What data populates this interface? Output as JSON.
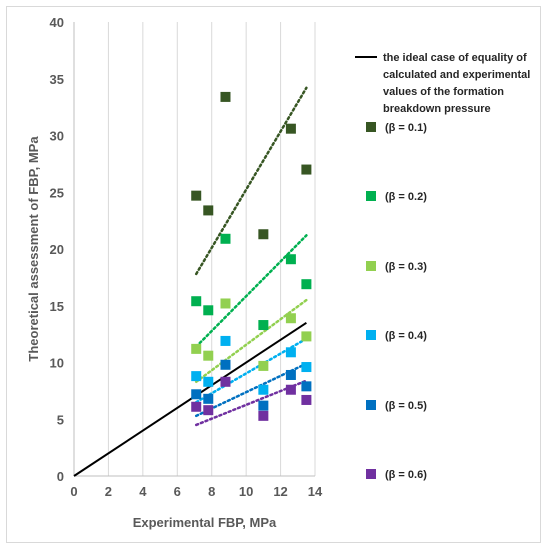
{
  "chart_data": {
    "type": "scatter",
    "xlabel": "Experimental FBP, MPa",
    "ylabel": "Theoretical assessment of FBP, MPa",
    "xlim": [
      0,
      14
    ],
    "ylim": [
      0,
      40
    ],
    "x_ticks": [
      "0",
      "2",
      "4",
      "6",
      "8",
      "10",
      "12",
      "14"
    ],
    "y_ticks": [
      "0",
      "5",
      "10",
      "15",
      "20",
      "25",
      "30",
      "35",
      "40"
    ],
    "grid": "vertical major gridlines",
    "legend_position": "right",
    "ideal_line": {
      "name": "the ideal case of equality of calculated and experimental values of the formation breakdown pressure",
      "legend_lines": [
        "the ideal case of equality of",
        "calculated and experimental",
        "values of the formation",
        "breakdown pressure"
      ],
      "x": [
        0,
        13.5
      ],
      "y": [
        0,
        13.5
      ],
      "color": "#000000"
    },
    "x": [
      7.1,
      7.8,
      8.8,
      11.0,
      12.6,
      13.5
    ],
    "series": [
      {
        "name": "(β = 0.1)",
        "color": "#375623",
        "values": [
          24.7,
          23.4,
          33.4,
          21.3,
          30.6,
          27.0
        ],
        "trend": [
          17.8,
          34.2
        ]
      },
      {
        "name": "(β = 0.2)",
        "color": "#00B050",
        "values": [
          15.4,
          14.6,
          20.9,
          13.3,
          19.1,
          16.9
        ],
        "trend": [
          11.4,
          21.2
        ]
      },
      {
        "name": "(β = 0.3)",
        "color": "#92D050",
        "values": [
          11.2,
          10.6,
          15.2,
          9.7,
          13.9,
          12.3
        ],
        "trend": [
          8.3,
          15.5
        ]
      },
      {
        "name": "(β = 0.4)",
        "color": "#00B0F0",
        "values": [
          8.8,
          8.3,
          11.9,
          7.6,
          10.9,
          9.6
        ],
        "trend": [
          6.5,
          12.1
        ]
      },
      {
        "name": "(β = 0.5)",
        "color": "#0070C0",
        "values": [
          7.2,
          6.8,
          9.8,
          6.2,
          8.9,
          7.9
        ],
        "trend": [
          5.3,
          9.9
        ]
      },
      {
        "name": "(β = 0.6)",
        "color": "#7030A0",
        "values": [
          6.1,
          5.8,
          8.3,
          5.3,
          7.6,
          6.7
        ],
        "trend": [
          4.5,
          8.4
        ]
      }
    ],
    "trend_x": [
      7.1,
      13.5
    ]
  }
}
